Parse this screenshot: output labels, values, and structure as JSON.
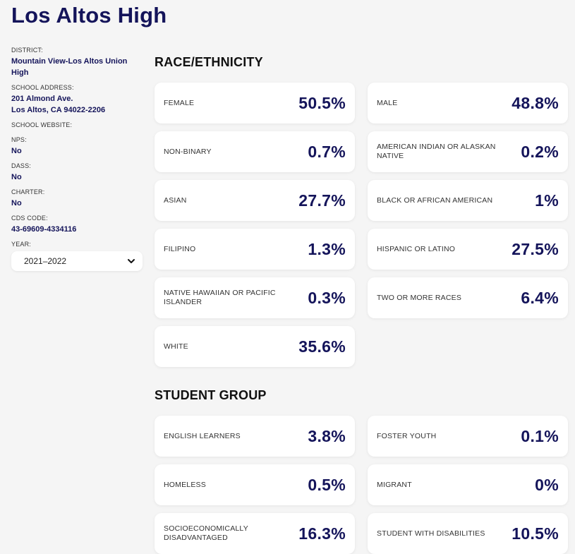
{
  "school": {
    "name": "Los Altos High"
  },
  "sidebar": {
    "district_label": "DISTRICT:",
    "district_value": "Mountain View-Los Altos Union High",
    "address_label": "SCHOOL ADDRESS:",
    "address_line1": "201 Almond Ave.",
    "address_line2": "Los Altos, CA 94022-2206",
    "website_label": "SCHOOL WEBSITE:",
    "nps_label": "NPS:",
    "nps_value": "No",
    "dass_label": "DASS:",
    "dass_value": "No",
    "charter_label": "CHARTER:",
    "charter_value": "No",
    "cds_label": "CDS CODE:",
    "cds_value": "43-69609-4334116",
    "year_label": "YEAR:",
    "year_selected": "2021–2022"
  },
  "race": {
    "title": "RACE/ETHNICITY",
    "cards": [
      {
        "label": "FEMALE",
        "value": "50.5%"
      },
      {
        "label": "MALE",
        "value": "48.8%"
      },
      {
        "label": "NON-BINARY",
        "value": "0.7%"
      },
      {
        "label": "AMERICAN INDIAN OR ALASKAN NATIVE",
        "value": "0.2%"
      },
      {
        "label": "ASIAN",
        "value": "27.7%"
      },
      {
        "label": "BLACK OR AFRICAN AMERICAN",
        "value": "1%"
      },
      {
        "label": "FILIPINO",
        "value": "1.3%"
      },
      {
        "label": "HISPANIC OR LATINO",
        "value": "27.5%"
      },
      {
        "label": "NATIVE HAWAIIAN OR PACIFIC ISLANDER",
        "value": "0.3%"
      },
      {
        "label": "TWO OR MORE RACES",
        "value": "6.4%"
      },
      {
        "label": "WHITE",
        "value": "35.6%"
      }
    ]
  },
  "group": {
    "title": "STUDENT GROUP",
    "cards": [
      {
        "label": "ENGLISH LEARNERS",
        "value": "3.8%"
      },
      {
        "label": "FOSTER YOUTH",
        "value": "0.1%"
      },
      {
        "label": "HOMELESS",
        "value": "0.5%"
      },
      {
        "label": "MIGRANT",
        "value": "0%"
      },
      {
        "label": "SOCIOECONOMICALLY DISADVANTAGED",
        "value": "16.3%"
      },
      {
        "label": "STUDENT WITH DISABILITIES",
        "value": "10.5%"
      }
    ]
  },
  "colors": {
    "accent": "#14145a",
    "background": "#f5f5f5",
    "card": "#ffffff"
  },
  "icons": {
    "year_dropdown": "chevron-down-icon"
  }
}
